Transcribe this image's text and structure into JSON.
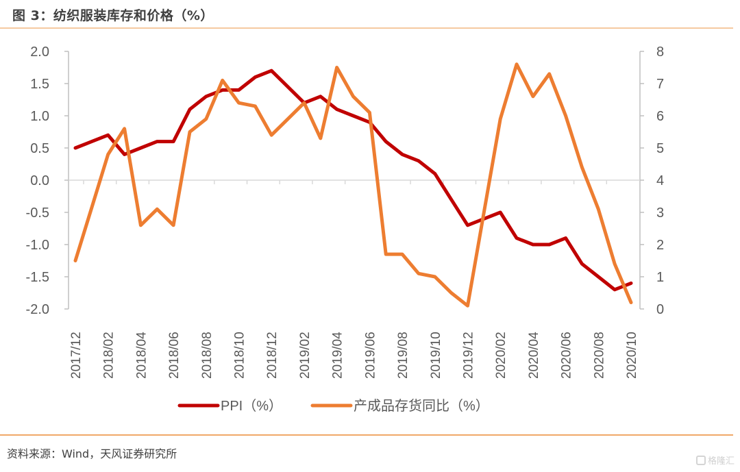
{
  "header": {
    "title": "图 3：纺织服装库存和价格（%）"
  },
  "footer": {
    "source": "资料来源：Wind，天风证券研究所",
    "watermark": "格隆汇"
  },
  "colors": {
    "ppi": "#c00000",
    "inventory": "#ed7d31",
    "axis": "#bfbfbf",
    "text": "#595959"
  },
  "chart_data": {
    "type": "line",
    "title": "图 3：纺织服装库存和价格（%）",
    "x": [
      "2017/12",
      "2018/01",
      "2018/02",
      "2018/03",
      "2018/04",
      "2018/05",
      "2018/06",
      "2018/07",
      "2018/08",
      "2018/09",
      "2018/10",
      "2018/11",
      "2018/12",
      "2019/01",
      "2019/02",
      "2019/03",
      "2019/04",
      "2019/05",
      "2019/06",
      "2019/07",
      "2019/08",
      "2019/09",
      "2019/10",
      "2019/11",
      "2019/12",
      "2020/01",
      "2020/02",
      "2020/03",
      "2020/04",
      "2020/05",
      "2020/06",
      "2020/07",
      "2020/08",
      "2020/09",
      "2020/10"
    ],
    "x_tick_labels": [
      "2017/12",
      "2018/02",
      "2018/04",
      "2018/06",
      "2018/08",
      "2018/10",
      "2018/12",
      "2019/02",
      "2019/04",
      "2019/06",
      "2019/08",
      "2019/10",
      "2019/12",
      "2020/02",
      "2020/04",
      "2020/06",
      "2020/08",
      "2020/10"
    ],
    "y_left": {
      "ylim": [
        -2.0,
        2.0
      ],
      "ticks": [
        "2.0",
        "1.5",
        "1.0",
        "0.5",
        "0.0",
        "-0.5",
        "-1.0",
        "-1.5",
        "-2.0"
      ]
    },
    "y_right": {
      "ylim": [
        0,
        8
      ],
      "ticks": [
        "8",
        "7",
        "6",
        "5",
        "4",
        "3",
        "2",
        "1",
        "0"
      ]
    },
    "legend_position": "bottom",
    "series": [
      {
        "name": "PPI（%）",
        "axis": "left",
        "values": [
          0.5,
          0.6,
          0.7,
          0.4,
          0.5,
          0.6,
          0.6,
          1.1,
          1.3,
          1.4,
          1.4,
          1.6,
          1.7,
          1.45,
          1.2,
          1.3,
          1.1,
          1.0,
          0.9,
          0.6,
          0.4,
          0.3,
          0.1,
          -0.3,
          -0.7,
          -0.6,
          -0.5,
          -0.9,
          -1.0,
          -1.0,
          -0.9,
          -1.3,
          -1.5,
          -1.7,
          -1.6
        ]
      },
      {
        "name": "产成品存货同比（%）",
        "axis": "right",
        "values": [
          1.5,
          3.15,
          4.8,
          5.6,
          2.6,
          3.1,
          2.6,
          5.5,
          5.9,
          7.1,
          6.4,
          6.3,
          5.4,
          5.9,
          6.4,
          5.3,
          7.5,
          6.6,
          6.1,
          1.7,
          1.7,
          1.1,
          1.0,
          0.5,
          0.1,
          3.0,
          5.9,
          7.6,
          6.6,
          7.3,
          6.0,
          4.4,
          3.1,
          1.4,
          0.2
        ]
      }
    ]
  }
}
